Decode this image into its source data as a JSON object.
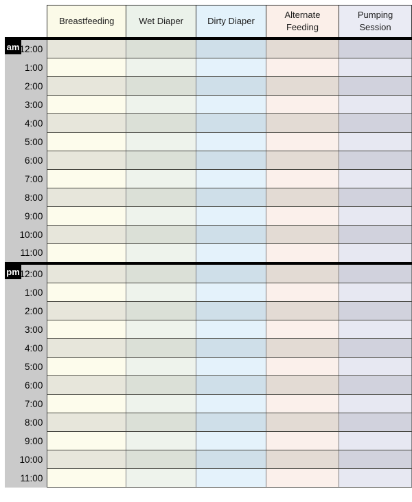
{
  "page": {
    "background": "#ffffff"
  },
  "table": {
    "type": "table",
    "description_columns_header": [
      "Breastfeeding",
      "Wet Diaper",
      "Dirty Diaper",
      "Alternate Feeding",
      "Pumping Session"
    ],
    "columns": [
      {
        "id": "breastfeeding",
        "label": "Breastfeeding",
        "header_bg": "#fbfae8",
        "row_light_bg": "#fdfcec",
        "row_shaded_bg": "#e7e6db"
      },
      {
        "id": "wet-diaper",
        "label": "Wet Diaper",
        "header_bg": "#ebf2ea",
        "row_light_bg": "#eef3ec",
        "row_shaded_bg": "#dbe0d7"
      },
      {
        "id": "dirty-diaper",
        "label": "Dirty Diaper",
        "header_bg": "#e3f2fb",
        "row_light_bg": "#e4f2fb",
        "row_shaded_bg": "#cfdfe9"
      },
      {
        "id": "alternate-feeding",
        "label": "Alternate Feeding",
        "header_bg": "#fbefe9",
        "row_light_bg": "#fbf0eb",
        "row_shaded_bg": "#e3dbd4"
      },
      {
        "id": "pumping-session",
        "label": "Pumping Session",
        "header_bg": "#eaebf4",
        "row_light_bg": "#e7e8f2",
        "row_shaded_bg": "#d1d2dd"
      }
    ],
    "sections": [
      {
        "label": "am",
        "times": [
          "12:00",
          "1:00",
          "2:00",
          "3:00",
          "4:00",
          "5:00",
          "6:00",
          "7:00",
          "8:00",
          "9:00",
          "10:00",
          "11:00"
        ]
      },
      {
        "label": "pm",
        "times": [
          "12:00",
          "1:00",
          "2:00",
          "3:00",
          "4:00",
          "5:00",
          "6:00",
          "7:00",
          "8:00",
          "9:00",
          "10:00",
          "11:00"
        ]
      }
    ],
    "time_column_bg": "#cacaca",
    "badge_bg": "#000000",
    "badge_text_color": "#ffffff",
    "thick_divider_color": "#000000",
    "cell_values": "all cells empty"
  }
}
